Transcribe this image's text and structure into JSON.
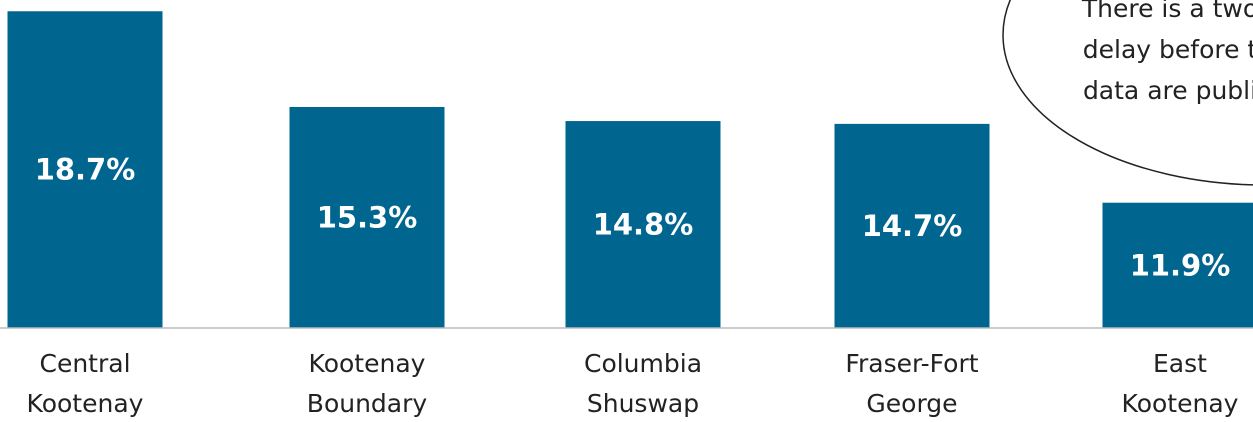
{
  "chart_data": {
    "type": "bar",
    "categories": [
      [
        "Central",
        "Kootenay"
      ],
      [
        "Kootenay",
        "Boundary"
      ],
      [
        "Columbia",
        "Shuswap"
      ],
      [
        "Fraser-Fort",
        "George"
      ],
      [
        "East",
        "Kootenay"
      ]
    ],
    "values": [
      18.7,
      15.3,
      14.8,
      14.7,
      11.9
    ],
    "value_labels": [
      "18.7%",
      "15.3%",
      "14.8%",
      "14.7%",
      "11.9%"
    ],
    "color": "#00658f",
    "ylim": [
      7.45,
      19.1
    ],
    "annotation": [
      "There is a two",
      "delay before t",
      "data are publi"
    ]
  }
}
